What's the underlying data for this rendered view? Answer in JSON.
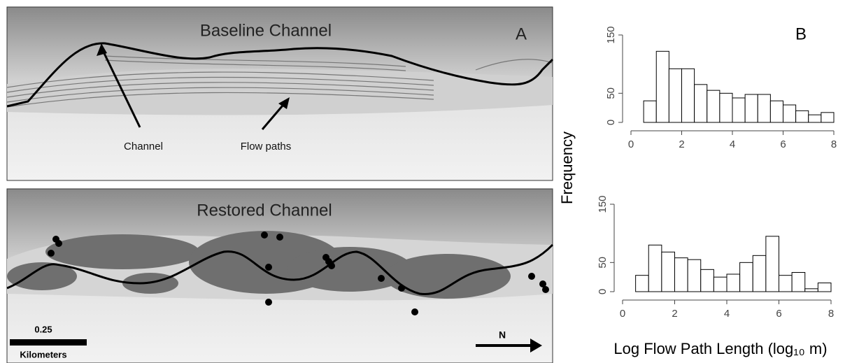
{
  "map": {
    "top": {
      "title": "Baseline Channel",
      "panel_label": "A",
      "channel_label": "Channel",
      "flow_label": "Flow paths"
    },
    "bottom": {
      "title": "Restored Channel",
      "scale_value": "0.25",
      "scale_unit": "Kilometers",
      "north": "N"
    }
  },
  "panel_b_label": "B",
  "shared_axes": {
    "ylabel": "Frequency",
    "xlabel": "Log Flow Path Length (log₁₀ m)"
  },
  "chart_data": [
    {
      "type": "histogram",
      "bins": [
        0.5,
        1,
        1.5,
        2,
        2.5,
        3,
        3.5,
        4,
        4.5,
        5,
        5.5,
        6,
        6.5,
        7,
        7.5,
        8
      ],
      "values": [
        37,
        122,
        92,
        92,
        65,
        55,
        50,
        42,
        48,
        48,
        37,
        30,
        20,
        13,
        17
      ],
      "color": "#ffffff",
      "edgecolor": "#000000",
      "xlim": [
        0,
        8
      ],
      "xticks": [
        0,
        2,
        4,
        6,
        8
      ],
      "ylim": [
        0,
        150
      ],
      "yticks": [
        0,
        50,
        150
      ],
      "grid": false
    },
    {
      "type": "histogram",
      "bins": [
        0.5,
        1,
        1.5,
        2,
        2.5,
        3,
        3.5,
        4,
        4.5,
        5,
        5.5,
        6,
        6.5,
        7,
        7.5,
        8
      ],
      "values": [
        28,
        80,
        68,
        58,
        55,
        38,
        25,
        30,
        50,
        62,
        95,
        28,
        33,
        5,
        15
      ],
      "color": "#ffffff",
      "edgecolor": "#000000",
      "xlim": [
        0,
        8
      ],
      "xticks": [
        0,
        2,
        4,
        6,
        8
      ],
      "ylim": [
        0,
        150
      ],
      "yticks": [
        0,
        50,
        150
      ],
      "grid": false
    }
  ]
}
